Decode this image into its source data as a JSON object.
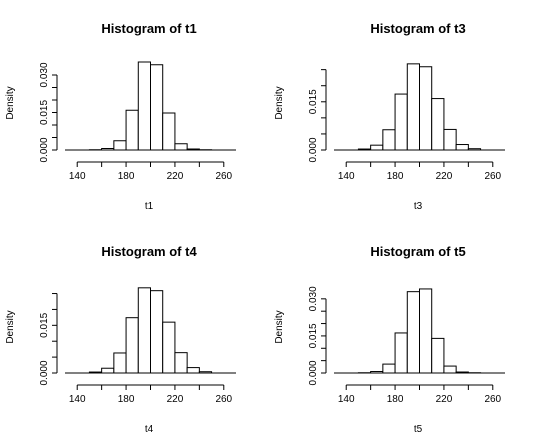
{
  "chart_data": [
    {
      "type": "bar",
      "title": "Histogram of t1",
      "xlabel": "t1",
      "ylabel": "Density",
      "xlim": [
        130,
        270
      ],
      "ylim": [
        0,
        0.036
      ],
      "xticks": [
        140,
        180,
        220,
        260
      ],
      "yticks": [
        0.0,
        0.015,
        0.03
      ],
      "yminor": [
        0.005,
        0.01,
        0.02,
        0.025
      ],
      "grid": false,
      "bin_width": 10,
      "bin_edges": [
        150,
        160,
        170,
        180,
        190,
        200,
        210,
        220,
        230,
        240,
        250
      ],
      "values": [
        0.0001,
        0.0006,
        0.0037,
        0.0159,
        0.0352,
        0.0341,
        0.0148,
        0.0025,
        0.0004,
        0.0001
      ]
    },
    {
      "type": "bar",
      "title": "Histogram of t3",
      "xlabel": "t3",
      "ylabel": "Density",
      "xlim": [
        130,
        270
      ],
      "ylim": [
        0,
        0.028
      ],
      "xticks": [
        140,
        180,
        220,
        260
      ],
      "yticks": [
        0.0,
        0.015
      ],
      "yminor": [
        0.005,
        0.01,
        0.02,
        0.025
      ],
      "grid": false,
      "bin_width": 10,
      "bin_edges": [
        150,
        160,
        170,
        180,
        190,
        200,
        210,
        220,
        230,
        240,
        250
      ],
      "values": [
        0.0003,
        0.0015,
        0.0063,
        0.0174,
        0.0268,
        0.0259,
        0.016,
        0.0064,
        0.0017,
        0.0004
      ]
    },
    {
      "type": "bar",
      "title": "Histogram of t4",
      "xlabel": "t4",
      "ylabel": "Density",
      "xlim": [
        130,
        270
      ],
      "ylim": [
        0,
        0.028
      ],
      "xticks": [
        140,
        180,
        220,
        260
      ],
      "yticks": [
        0.0,
        0.015
      ],
      "yminor": [
        0.005,
        0.01,
        0.02,
        0.025
      ],
      "grid": false,
      "bin_width": 10,
      "bin_edges": [
        150,
        160,
        170,
        180,
        190,
        200,
        210,
        220,
        230,
        240,
        250
      ],
      "values": [
        0.0003,
        0.0015,
        0.0063,
        0.0174,
        0.0268,
        0.0259,
        0.016,
        0.0064,
        0.0017,
        0.0004
      ]
    },
    {
      "type": "bar",
      "title": "Histogram of t5",
      "xlabel": "t5",
      "ylabel": "Density",
      "xlim": [
        130,
        270
      ],
      "ylim": [
        0,
        0.036
      ],
      "xticks": [
        140,
        180,
        220,
        260
      ],
      "yticks": [
        0.0,
        0.015,
        0.03
      ],
      "yminor": [
        0.005,
        0.01,
        0.02,
        0.025
      ],
      "grid": false,
      "bin_width": 10,
      "bin_edges": [
        150,
        160,
        170,
        180,
        190,
        200,
        210,
        220,
        230,
        240,
        250
      ],
      "values": [
        0.0001,
        0.0006,
        0.0036,
        0.0162,
        0.0329,
        0.034,
        0.014,
        0.0028,
        0.0004,
        0.0001
      ]
    }
  ]
}
